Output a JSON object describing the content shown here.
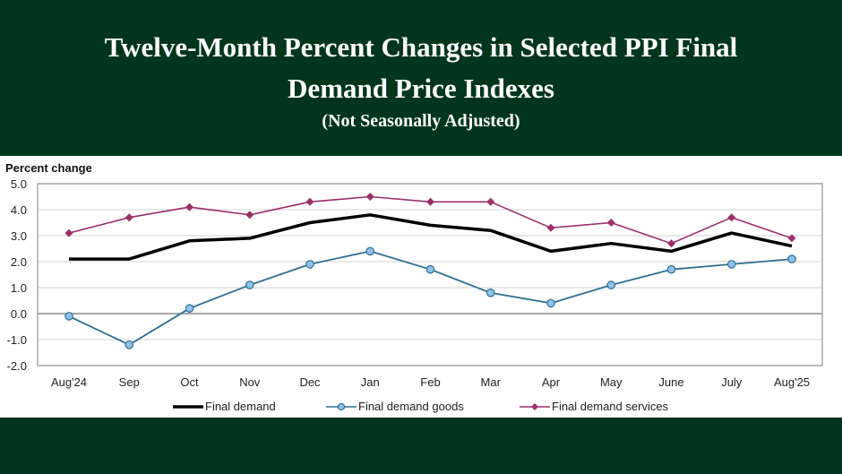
{
  "header": {
    "title_line1": "Twelve-Month Percent Changes in Selected PPI Final",
    "title_line2": "Demand Price Indexes",
    "subtitle": "(Not Seasonally Adjusted)"
  },
  "colors": {
    "background": "#01361d",
    "final_demand": "#000000",
    "goods_line": "#2e6f91",
    "goods_marker": "#8fc1ea",
    "services": "#9b2f6a"
  },
  "chart_data": {
    "type": "line",
    "title": "Twelve-Month Percent Changes in Selected PPI Final Demand Price Indexes",
    "subtitle": "(Not Seasonally Adjusted)",
    "xlabel": "",
    "ylabel": "Percent change",
    "ylim": [
      -2.0,
      5.0
    ],
    "yticks": [
      "5.0",
      "4.0",
      "3.0",
      "2.0",
      "1.0",
      "0.0",
      "-1.0",
      "-2.0"
    ],
    "ytick_values": [
      5,
      4,
      3,
      2,
      1,
      0,
      -1,
      -2
    ],
    "grid": true,
    "legend_position": "bottom",
    "categories": [
      "Aug'24",
      "Sep",
      "Oct",
      "Nov",
      "Dec",
      "Jan",
      "Feb",
      "Mar",
      "Apr",
      "May",
      "June",
      "July",
      "Aug'25"
    ],
    "series": [
      {
        "name": "Final demand",
        "marker": "none",
        "values": [
          2.1,
          2.1,
          2.8,
          2.9,
          3.5,
          3.8,
          3.4,
          3.2,
          2.4,
          2.7,
          2.4,
          3.1,
          2.6
        ]
      },
      {
        "name": "Final demand goods",
        "marker": "circle",
        "values": [
          -0.1,
          -1.2,
          0.2,
          1.1,
          1.9,
          2.4,
          1.7,
          0.8,
          0.4,
          1.1,
          1.7,
          1.9,
          2.1
        ]
      },
      {
        "name": "Final demand services",
        "marker": "diamond",
        "values": [
          3.1,
          3.7,
          4.1,
          3.8,
          4.3,
          4.5,
          4.3,
          4.3,
          3.3,
          3.5,
          2.7,
          3.7,
          2.9
        ]
      }
    ]
  }
}
